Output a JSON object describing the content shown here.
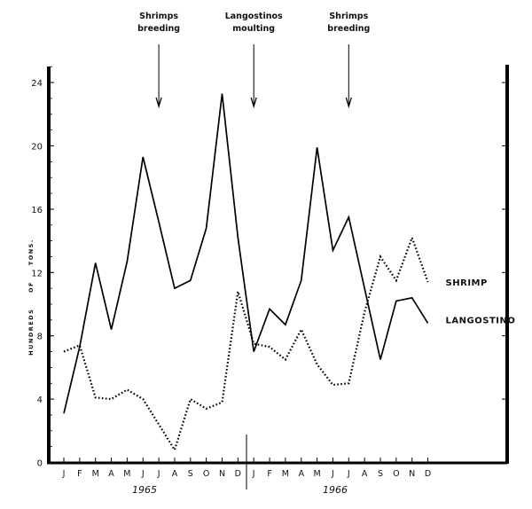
{
  "chart_data": {
    "type": "line",
    "title": "",
    "xlabel": "",
    "ylabel": "HUNDREDS OF TONS.",
    "ylim": [
      0,
      26
    ],
    "yticks": [
      "0",
      "4",
      "8",
      "12",
      "16",
      "20",
      "24"
    ],
    "categories": [
      "J",
      "F",
      "M",
      "A",
      "M",
      "J",
      "J",
      "A",
      "S",
      "O",
      "N",
      "D",
      "J",
      "F",
      "M",
      "A",
      "M",
      "J",
      "J",
      "A",
      "S",
      "O",
      "N",
      "D"
    ],
    "years": [
      "1965",
      "1966"
    ],
    "grid": false,
    "series": [
      {
        "name": "LANGOSTINO",
        "style": "solid",
        "values": [
          3.1,
          7.3,
          12.6,
          8.4,
          12.7,
          19.3,
          15.2,
          11.0,
          11.5,
          14.8,
          23.3,
          14.2,
          7.0,
          9.7,
          8.7,
          11.5,
          19.9,
          13.4,
          15.5,
          11.0,
          6.5,
          10.2,
          10.4,
          8.8
        ]
      },
      {
        "name": "SHRIMP",
        "style": "dotted",
        "values": [
          7.0,
          7.4,
          4.1,
          4.0,
          4.6,
          4.0,
          2.4,
          0.8,
          4.0,
          3.4,
          3.8,
          10.8,
          7.5,
          7.3,
          6.5,
          8.4,
          6.2,
          4.9,
          5.0,
          9.5,
          13.0,
          11.5,
          14.2,
          11.4
        ]
      }
    ],
    "annotations": [
      {
        "line1": "Shrimps",
        "line2": "breeding",
        "month_index": 6
      },
      {
        "line1": "Langostinos",
        "line2": "moulting",
        "month_index": 12
      },
      {
        "line1": "Shrimps",
        "line2": "breeding",
        "month_index": 18
      }
    ]
  }
}
